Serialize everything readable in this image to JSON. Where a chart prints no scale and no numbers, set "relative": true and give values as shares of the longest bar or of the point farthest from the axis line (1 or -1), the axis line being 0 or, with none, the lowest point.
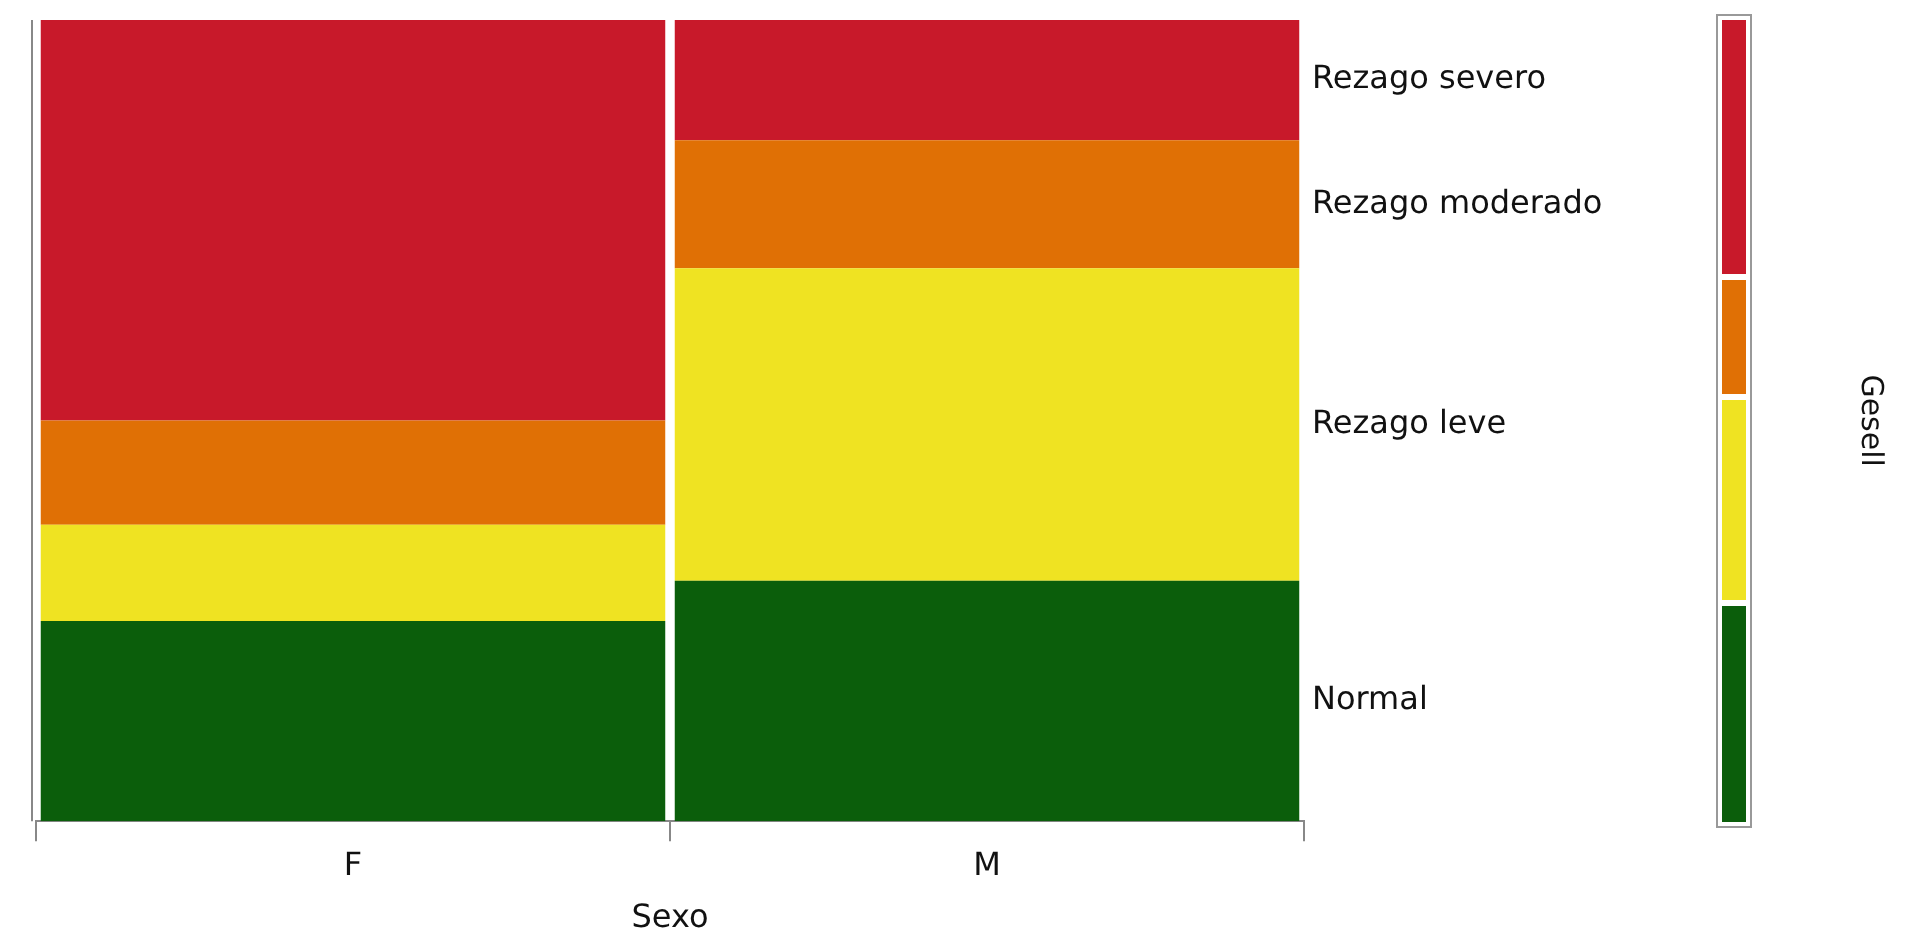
{
  "chart_data": {
    "type": "bar",
    "stacked": true,
    "relative": true,
    "xlabel": "Sexo",
    "legend_title": "Gesell",
    "legend": "right",
    "grid": false,
    "categories": [
      "F",
      "M"
    ],
    "series": [
      {
        "name": "Normal",
        "color": "#0b5e0b",
        "values": [
          0.25,
          0.3
        ]
      },
      {
        "name": "Rezago leve",
        "color": "#efe322",
        "values": [
          0.12,
          0.39
        ]
      },
      {
        "name": "Rezago moderado",
        "color": "#e07005",
        "values": [
          0.13,
          0.16
        ]
      },
      {
        "name": "Rezago severo",
        "color": "#c8192a",
        "values": [
          0.5,
          0.15
        ]
      }
    ]
  }
}
